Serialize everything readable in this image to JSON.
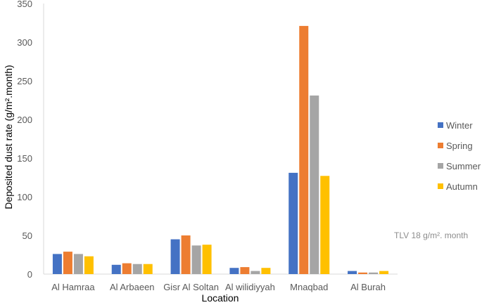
{
  "chart_data": {
    "type": "bar",
    "xlabel": "Location",
    "ylabel": "Deposited dust  rate  (g/m².month)",
    "ylim": [
      0,
      350
    ],
    "yticks": [
      "0",
      "50",
      "100",
      "150",
      "200",
      "250",
      "300",
      "350"
    ],
    "grid": false,
    "legend_position": "right",
    "categories": [
      "Al Hamraa",
      "Al Arbaeen",
      "Gisr Al Soltan",
      "Al wilidiyyah",
      "Mnaqbad",
      "Al Burah"
    ],
    "series": [
      {
        "name": "Winter",
        "color": "#4472c4",
        "values": [
          26,
          12,
          45,
          8,
          131,
          4
        ]
      },
      {
        "name": "Spring",
        "color": "#ed7d31",
        "values": [
          29,
          14,
          50,
          9,
          321,
          2
        ]
      },
      {
        "name": "Summer",
        "color": "#a5a5a5",
        "values": [
          26,
          13,
          37,
          4,
          231,
          2
        ]
      },
      {
        "name": "Autumn",
        "color": "#ffc000",
        "values": [
          23,
          13,
          38,
          8,
          127,
          4
        ]
      }
    ],
    "annotation": "TLV 18 g/m². month"
  }
}
